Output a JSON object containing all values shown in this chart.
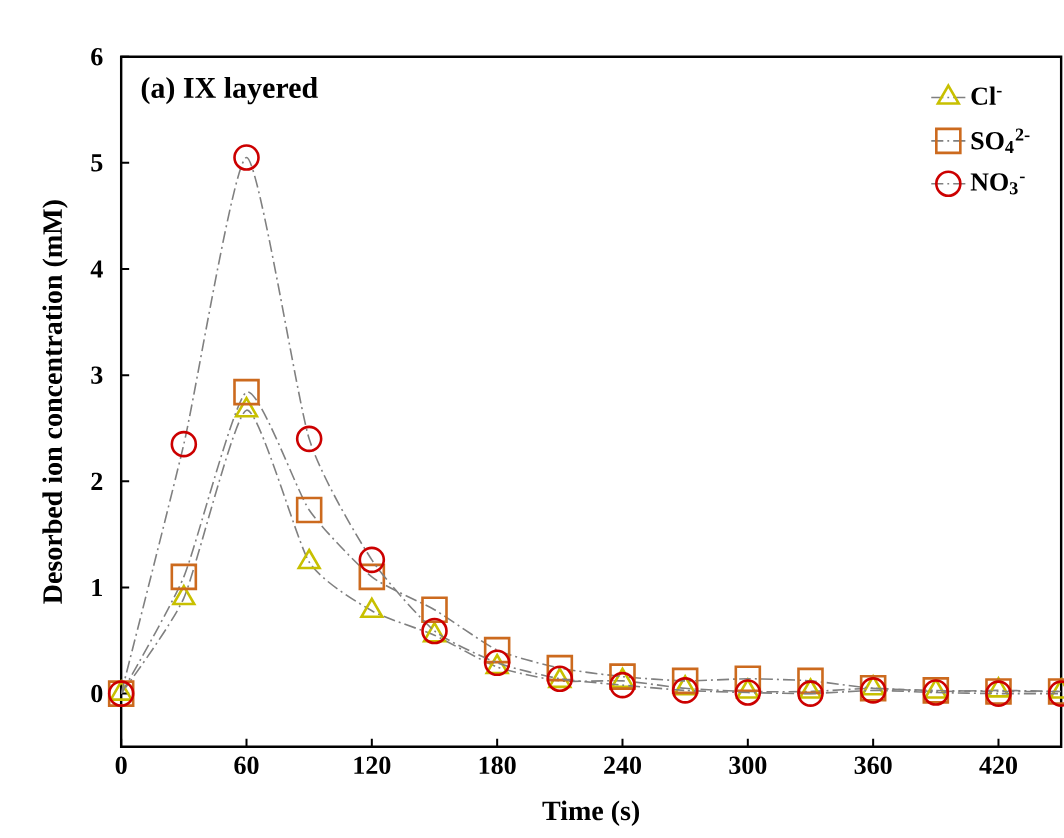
{
  "chart_data": {
    "type": "line",
    "title": "(a) IX layered",
    "xlabel": "Time (s)",
    "ylabel": "Desorbed ion concentration (mM)",
    "x": [
      0,
      30,
      60,
      90,
      120,
      150,
      180,
      210,
      240,
      270,
      300,
      330,
      360,
      390,
      420,
      450
    ],
    "series": [
      {
        "name": "Cl$^{-}$",
        "color": "#c8c000",
        "marker": "triangle",
        "values": [
          0,
          0.9,
          2.67,
          1.24,
          0.78,
          0.55,
          0.25,
          0.12,
          0.12,
          0.05,
          0.02,
          0.02,
          0.05,
          0.02,
          0.03,
          0.02
        ]
      },
      {
        "name": "SO$_{4}$$^{2-}$",
        "color": "#cc6a1e",
        "marker": "square",
        "values": [
          0,
          1.1,
          2.84,
          1.73,
          1.1,
          0.79,
          0.41,
          0.24,
          0.16,
          0.12,
          0.14,
          0.12,
          0.05,
          0.03,
          0.02,
          0.02
        ]
      },
      {
        "name": "NO$_{3}$$^{-}$",
        "color": "#cc0000",
        "marker": "circle",
        "values": [
          0,
          2.35,
          5.05,
          2.4,
          1.26,
          0.59,
          0.29,
          0.14,
          0.08,
          0.03,
          0.01,
          0.0,
          0.03,
          0.01,
          0.0,
          0.0
        ]
      }
    ],
    "xlim": [
      0,
      450
    ],
    "ylim": [
      -0.5,
      6
    ],
    "xticks": [
      0,
      60,
      120,
      180,
      240,
      300,
      360,
      420
    ],
    "yticks": [
      0,
      1,
      2,
      3,
      4,
      5,
      6
    ],
    "legend": "top right",
    "line_style": "dashed",
    "grid": false
  }
}
